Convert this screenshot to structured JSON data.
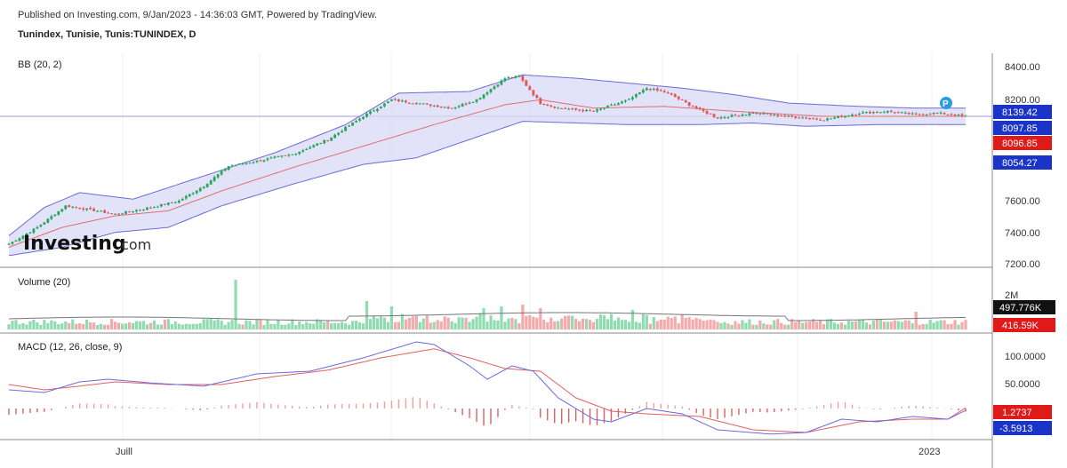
{
  "header": {
    "published": "Published on Investing.com, 9/Jan/2023 - 14:36:03 GMT, Powered by TradingView.",
    "symbol": "Tunindex, Tunisie, Tunis:TUNINDEX, D"
  },
  "logo": {
    "main": "Investing",
    "sub": ".com"
  },
  "marker": {
    "label": "P"
  },
  "colors": {
    "up": "#26a65b",
    "down": "#e05555",
    "band_fill": "#d8d8f5",
    "band_line": "#6b6bd6",
    "basis": "#e07070",
    "vol_up": "#8fdcb0",
    "vol_down": "#f4aaaa",
    "macd_line": "#6a6ae0",
    "signal_line": "#e06060",
    "label_blue": "#1a33c9",
    "label_red": "#e01919",
    "label_black": "#111111"
  },
  "chart_data": [
    {
      "type": "candlestick",
      "title": "BB (20, 2)",
      "y_ticks": [
        "8400.00",
        "8200.00",
        "7600.00",
        "7400.00",
        "7200.00"
      ],
      "x_ticks": [
        "Juill",
        "2023"
      ],
      "value_labels": [
        {
          "text": "8139.42",
          "color": "#1a33c9"
        },
        {
          "text": "8097.85",
          "color": "#1a33c9"
        },
        {
          "text": "8096.85",
          "color": "#e01919"
        },
        {
          "text": "8054.27",
          "color": "#1a33c9"
        }
      ],
      "close_anchors": [
        [
          0,
          7330
        ],
        [
          8,
          7430
        ],
        [
          16,
          7560
        ],
        [
          22,
          7540
        ],
        [
          30,
          7510
        ],
        [
          40,
          7550
        ],
        [
          48,
          7590
        ],
        [
          55,
          7680
        ],
        [
          62,
          7800
        ],
        [
          70,
          7830
        ],
        [
          80,
          7870
        ],
        [
          90,
          7960
        ],
        [
          100,
          8100
        ],
        [
          108,
          8200
        ],
        [
          115,
          8180
        ],
        [
          125,
          8150
        ],
        [
          132,
          8200
        ],
        [
          140,
          8330
        ],
        [
          144,
          8340
        ],
        [
          150,
          8180
        ],
        [
          155,
          8150
        ],
        [
          165,
          8130
        ],
        [
          175,
          8200
        ],
        [
          180,
          8270
        ],
        [
          186,
          8240
        ],
        [
          192,
          8170
        ],
        [
          200,
          8090
        ],
        [
          210,
          8120
        ],
        [
          220,
          8100
        ],
        [
          230,
          8080
        ],
        [
          240,
          8120
        ],
        [
          248,
          8130
        ],
        [
          256,
          8110
        ],
        [
          262,
          8120
        ],
        [
          270,
          8100
        ]
      ],
      "bb_upper_anchors": [
        [
          0,
          7380
        ],
        [
          10,
          7550
        ],
        [
          20,
          7640
        ],
        [
          35,
          7600
        ],
        [
          55,
          7740
        ],
        [
          75,
          7880
        ],
        [
          95,
          8050
        ],
        [
          110,
          8240
        ],
        [
          130,
          8250
        ],
        [
          145,
          8350
        ],
        [
          160,
          8330
        ],
        [
          175,
          8300
        ],
        [
          190,
          8270
        ],
        [
          205,
          8230
        ],
        [
          220,
          8180
        ],
        [
          240,
          8160
        ],
        [
          255,
          8150
        ],
        [
          270,
          8150
        ]
      ],
      "bb_lower_anchors": [
        [
          0,
          7260
        ],
        [
          15,
          7310
        ],
        [
          30,
          7400
        ],
        [
          45,
          7430
        ],
        [
          60,
          7560
        ],
        [
          80,
          7690
        ],
        [
          100,
          7810
        ],
        [
          115,
          7850
        ],
        [
          130,
          7960
        ],
        [
          145,
          8070
        ],
        [
          160,
          8060
        ],
        [
          175,
          8050
        ],
        [
          195,
          8050
        ],
        [
          210,
          8060
        ],
        [
          225,
          8040
        ],
        [
          245,
          8050
        ],
        [
          260,
          8050
        ],
        [
          270,
          8050
        ]
      ],
      "bb_basis_anchors": [
        [
          0,
          7310
        ],
        [
          15,
          7430
        ],
        [
          30,
          7500
        ],
        [
          45,
          7530
        ],
        [
          60,
          7650
        ],
        [
          80,
          7790
        ],
        [
          100,
          7920
        ],
        [
          120,
          8050
        ],
        [
          140,
          8170
        ],
        [
          150,
          8200
        ],
        [
          165,
          8150
        ],
        [
          185,
          8160
        ],
        [
          205,
          8130
        ],
        [
          230,
          8100
        ],
        [
          255,
          8100
        ],
        [
          270,
          8100
        ]
      ]
    },
    {
      "type": "bar",
      "title": "Volume (20)",
      "y_ticks": [
        "2M"
      ],
      "value_labels": [
        {
          "text": "497.776K",
          "color": "#111111"
        },
        {
          "text": "416.59K",
          "color": "#e01919"
        }
      ],
      "spikes": [
        [
          64,
          2.8
        ],
        [
          101,
          1.6
        ],
        [
          108,
          1.3
        ],
        [
          134,
          1.2
        ],
        [
          139,
          1.3
        ],
        [
          145,
          1.4
        ],
        [
          150,
          1.2
        ],
        [
          176,
          1.1
        ],
        [
          256,
          1.0
        ]
      ]
    },
    {
      "type": "line",
      "title": "MACD (12, 26, close, 9)",
      "y_ticks": [
        "100.0000",
        "50.0000"
      ],
      "value_labels": [
        {
          "text": "1.2737",
          "color": "#e01919"
        },
        {
          "text": "-3.5913",
          "color": "#1a33c9"
        }
      ],
      "series": [
        {
          "name": "",
          "anchors": [
            [
              0,
              35
            ],
            [
              10,
              30
            ],
            [
              20,
              50
            ],
            [
              28,
              55
            ],
            [
              40,
              48
            ],
            [
              55,
              42
            ],
            [
              70,
              65
            ],
            [
              85,
              70
            ],
            [
              100,
              95
            ],
            [
              115,
              125
            ],
            [
              120,
              120
            ],
            [
              130,
              80
            ],
            [
              135,
              55
            ],
            [
              142,
              80
            ],
            [
              148,
              70
            ],
            [
              155,
              20
            ],
            [
              165,
              -20
            ],
            [
              170,
              -25
            ],
            [
              180,
              0
            ],
            [
              190,
              -10
            ],
            [
              200,
              -40
            ],
            [
              215,
              -48
            ],
            [
              225,
              -45
            ],
            [
              235,
              -20
            ],
            [
              245,
              -25
            ],
            [
              255,
              -15
            ],
            [
              265,
              -20
            ],
            [
              270,
              -3.59
            ]
          ]
        },
        {
          "name": "",
          "anchors": [
            [
              0,
              45
            ],
            [
              10,
              35
            ],
            [
              20,
              42
            ],
            [
              30,
              50
            ],
            [
              45,
              45
            ],
            [
              60,
              45
            ],
            [
              75,
              60
            ],
            [
              90,
              72
            ],
            [
              105,
              95
            ],
            [
              120,
              112
            ],
            [
              130,
              95
            ],
            [
              140,
              75
            ],
            [
              150,
              70
            ],
            [
              160,
              20
            ],
            [
              170,
              -5
            ],
            [
              180,
              -10
            ],
            [
              195,
              -15
            ],
            [
              210,
              -40
            ],
            [
              225,
              -45
            ],
            [
              240,
              -25
            ],
            [
              255,
              -20
            ],
            [
              265,
              -20
            ],
            [
              270,
              1.27
            ]
          ]
        }
      ]
    }
  ]
}
